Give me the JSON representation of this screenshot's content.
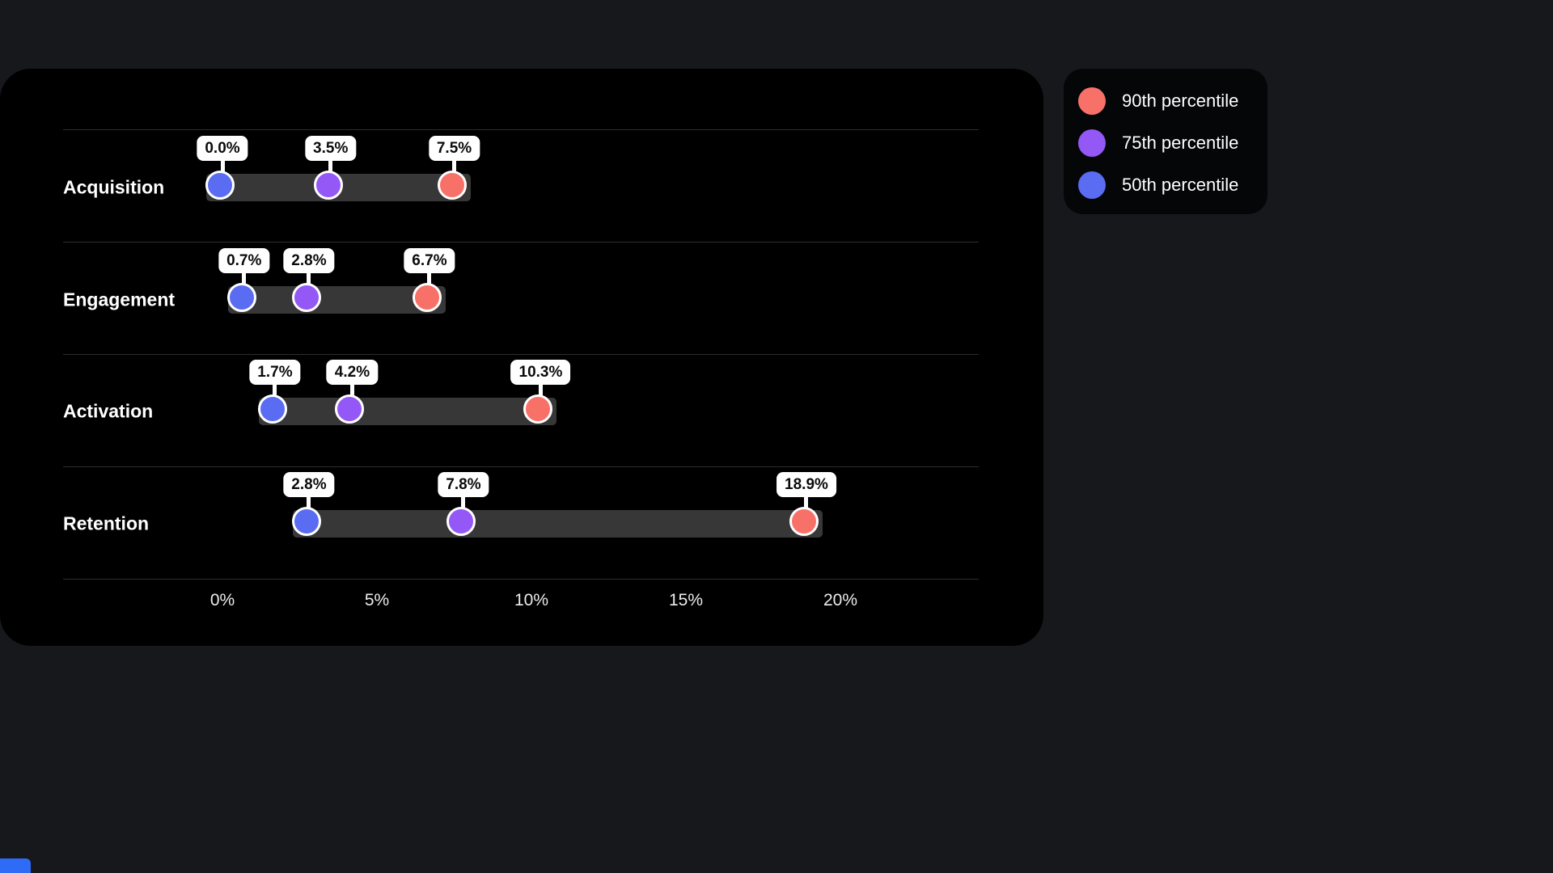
{
  "chart_data": {
    "type": "dumbbell",
    "title": "",
    "categories": [
      "Acquisition",
      "Engagement",
      "Activation",
      "Retention"
    ],
    "series": [
      {
        "name": "50th percentile",
        "color": "#5A6CF2",
        "values": [
          0.0,
          0.7,
          1.7,
          2.8
        ],
        "labels": [
          "0.0%",
          "0.7%",
          "1.7%",
          "2.8%"
        ]
      },
      {
        "name": "75th percentile",
        "color": "#9358F5",
        "values": [
          3.5,
          2.8,
          4.2,
          7.8
        ],
        "labels": [
          "3.5%",
          "2.8%",
          "4.2%",
          "7.8%"
        ]
      },
      {
        "name": "90th percentile",
        "color": "#F87168",
        "values": [
          7.5,
          6.7,
          10.3,
          18.9
        ],
        "labels": [
          "7.5%",
          "6.7%",
          "10.3%",
          "18.9%"
        ]
      }
    ],
    "x_ticks": [
      {
        "label": "0%",
        "value": 0
      },
      {
        "label": "5%",
        "value": 5
      },
      {
        "label": "10%",
        "value": 10
      },
      {
        "label": "15%",
        "value": 15
      },
      {
        "label": "20%",
        "value": 20
      }
    ],
    "xlim": [
      0,
      24.5
    ],
    "grid": "horizontal",
    "legend_position": "top-right"
  },
  "legend": {
    "items": [
      {
        "label": "90th percentile",
        "color": "#F87168"
      },
      {
        "label": "75th percentile",
        "color": "#9358F5"
      },
      {
        "label": "50th percentile",
        "color": "#5A6CF2"
      }
    ]
  },
  "colors": {
    "page_bg": "#16181c",
    "card_bg": "#000000",
    "legend_bg": "#050608",
    "bar": "#373737",
    "gridline": "#2d2d2d",
    "value_label_bg": "#ffffff",
    "value_label_text": "#0b0b0b",
    "axis_text": "#ececec",
    "category_text": "#ffffff",
    "accent_blue": "#2e6bf6"
  }
}
